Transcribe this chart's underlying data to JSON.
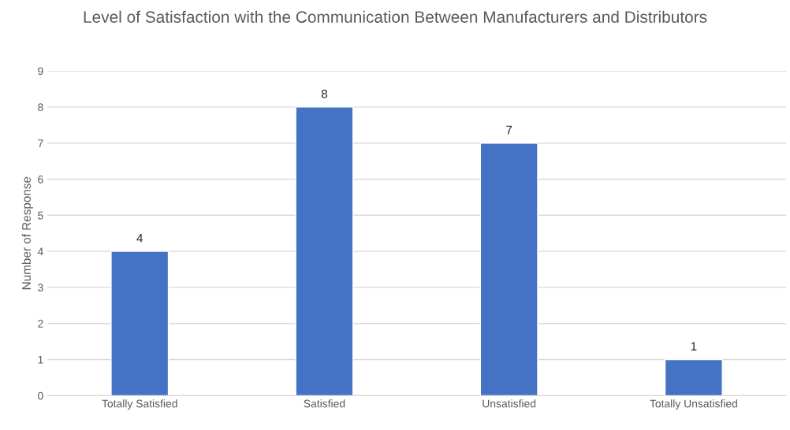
{
  "chart_data": {
    "type": "bar",
    "title": "Level of Satisfaction with the Communication Between Manufacturers and Distributors",
    "ylabel": "Number of Response",
    "categories": [
      "Totally Satisfied",
      "Satisfied",
      "Unsatisfied",
      "Totally Unsatisfied"
    ],
    "values": [
      4,
      8,
      7,
      1
    ],
    "color": "#4472c4",
    "ylim": [
      0,
      9
    ],
    "yticks": [
      0,
      1,
      2,
      3,
      4,
      5,
      6,
      7,
      8,
      9
    ],
    "grid": "y",
    "data_labels": true
  }
}
